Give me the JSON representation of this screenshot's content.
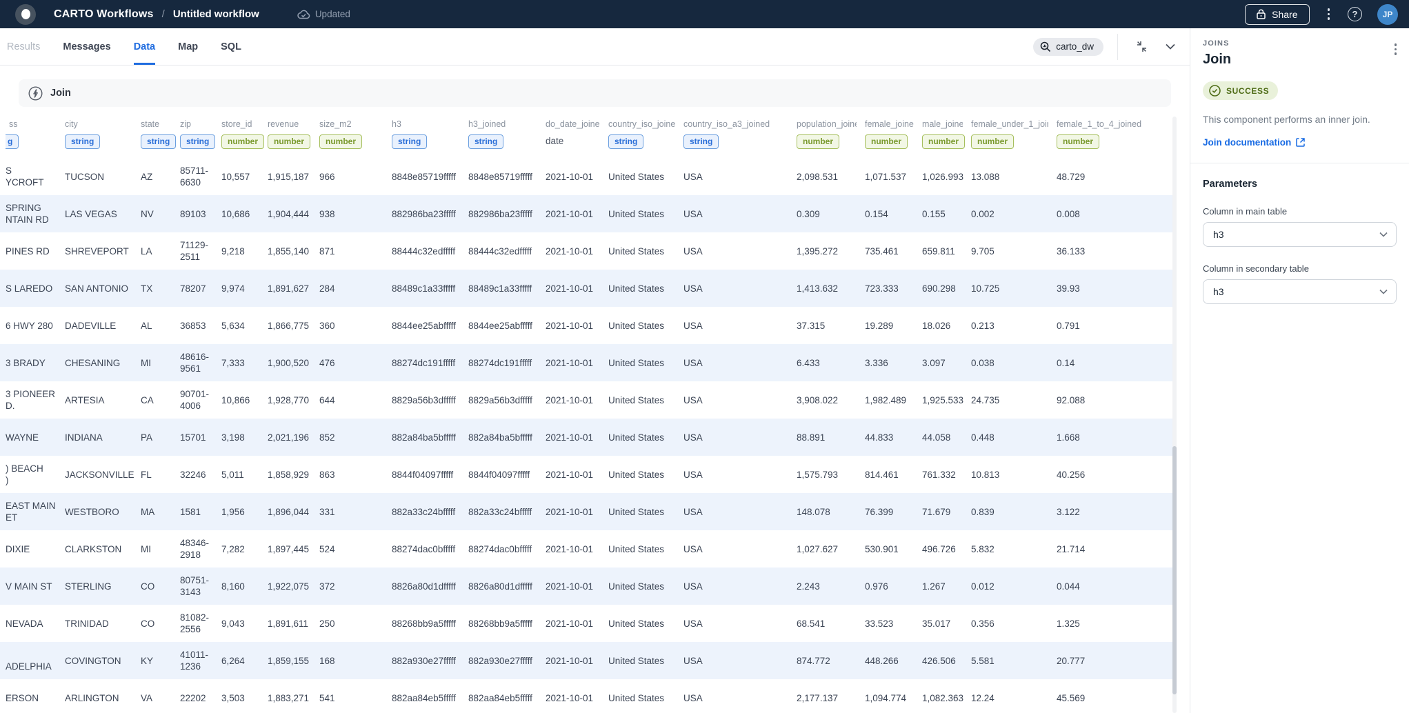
{
  "colors": {
    "accent_blue": "#1f6ce0",
    "header_navy": "#16283e",
    "string_badge": "#2b6fd8",
    "number_badge": "#7a9a2e",
    "success_green": "#4e6c16",
    "row_alt": "#edf3fc"
  },
  "header": {
    "brand": "CARTO Workflows",
    "separator": "/",
    "workflow_title": "Untitled workflow",
    "status": "Updated",
    "share_label": "Share",
    "avatar_initials": "JP"
  },
  "toolbar": {
    "tabs": [
      {
        "label": "Results",
        "state": "disabled"
      },
      {
        "label": "Messages",
        "state": "normal"
      },
      {
        "label": "Data",
        "state": "active"
      },
      {
        "label": "Map",
        "state": "normal"
      },
      {
        "label": "SQL",
        "state": "normal"
      }
    ],
    "connection": "carto_dw"
  },
  "canvas": {
    "section_title": "Join"
  },
  "panel": {
    "category": "JOINS",
    "title": "Join",
    "status": "SUCCESS",
    "description": "This component performs an inner join.",
    "doc_link": "Join documentation",
    "parameters_title": "Parameters",
    "main_column_label": "Column in main table",
    "main_column_value": "h3",
    "secondary_column_label": "Column in secondary table",
    "secondary_column_value": "h3"
  },
  "table": {
    "columns": [
      {
        "key": "address",
        "label": "ss",
        "type": "string-clipped",
        "type_label": "g"
      },
      {
        "key": "city",
        "label": "city",
        "type": "string",
        "type_label": "string"
      },
      {
        "key": "state",
        "label": "state",
        "type": "string",
        "type_label": "string"
      },
      {
        "key": "zip",
        "label": "zip",
        "type": "string",
        "type_label": "string"
      },
      {
        "key": "store_id",
        "label": "store_id",
        "type": "number",
        "type_label": "number"
      },
      {
        "key": "revenue",
        "label": "revenue",
        "type": "number",
        "type_label": "number"
      },
      {
        "key": "size_m2",
        "label": "size_m2",
        "type": "number",
        "type_label": "number"
      },
      {
        "key": "h3",
        "label": "h3",
        "type": "string",
        "type_label": "string"
      },
      {
        "key": "h3_joined",
        "label": "h3_joined",
        "type": "string",
        "type_label": "string"
      },
      {
        "key": "do_date_joined",
        "label": "do_date_joined",
        "type": "date",
        "type_label": "date"
      },
      {
        "key": "country_iso_joined",
        "label": "country_iso_joined",
        "type": "string",
        "type_label": "string"
      },
      {
        "key": "country_iso_a3_joined",
        "label": "country_iso_a3_joined",
        "type": "string",
        "type_label": "string"
      },
      {
        "key": "population_joined",
        "label": "population_joined",
        "type": "number",
        "type_label": "number"
      },
      {
        "key": "female_joined",
        "label": "female_joined",
        "type": "number",
        "type_label": "number"
      },
      {
        "key": "male_joined",
        "label": "male_joined",
        "type": "number",
        "type_label": "number"
      },
      {
        "key": "female_under_1_joined",
        "label": "female_under_1_joined",
        "type": "number",
        "type_label": "number"
      },
      {
        "key": "female_1_to_4_joined",
        "label": "female_1_to_4_joined",
        "type": "number",
        "type_label": "number"
      }
    ],
    "rows": [
      [
        "S\nYCROFT",
        "TUCSON",
        "AZ",
        "85711-\n6630",
        "10,557",
        "1,915,187",
        "966",
        "8848e85719fffff",
        "8848e85719fffff",
        "2021-10-01",
        "United States",
        "USA",
        "2,098.531",
        "1,071.537",
        "1,026.993",
        "13.088",
        "48.729"
      ],
      [
        "SPRING\nNTAIN RD",
        "LAS VEGAS",
        "NV",
        "89103",
        "10,686",
        "1,904,444",
        "938",
        "882986ba23fffff",
        "882986ba23fffff",
        "2021-10-01",
        "United States",
        "USA",
        "0.309",
        "0.154",
        "0.155",
        "0.002",
        "0.008"
      ],
      [
        "PINES RD",
        "SHREVEPORT",
        "LA",
        "71129-\n2511",
        "9,218",
        "1,855,140",
        "871",
        "88444c32edfffff",
        "88444c32edfffff",
        "2021-10-01",
        "United States",
        "USA",
        "1,395.272",
        "735.461",
        "659.811",
        "9.705",
        "36.133"
      ],
      [
        "S LAREDO",
        "SAN ANTONIO",
        "TX",
        "78207",
        "9,974",
        "1,891,627",
        "284",
        "88489c1a33fffff",
        "88489c1a33fffff",
        "2021-10-01",
        "United States",
        "USA",
        "1,413.632",
        "723.333",
        "690.298",
        "10.725",
        "39.93"
      ],
      [
        "6 HWY 280",
        "DADEVILLE",
        "AL",
        "36853",
        "5,634",
        "1,866,775",
        "360",
        "8844ee25abfffff",
        "8844ee25abfffff",
        "2021-10-01",
        "United States",
        "USA",
        "37.315",
        "19.289",
        "18.026",
        "0.213",
        "0.791"
      ],
      [
        "3 BRADY",
        "CHESANING",
        "MI",
        "48616-\n9561",
        "7,333",
        "1,900,520",
        "476",
        "88274dc191fffff",
        "88274dc191fffff",
        "2021-10-01",
        "United States",
        "USA",
        "6.433",
        "3.336",
        "3.097",
        "0.038",
        "0.14"
      ],
      [
        "3 PIONEER\nD.",
        "ARTESIA",
        "CA",
        "90701-\n4006",
        "10,866",
        "1,928,770",
        "644",
        "8829a56b3dfffff",
        "8829a56b3dfffff",
        "2021-10-01",
        "United States",
        "USA",
        "3,908.022",
        "1,982.489",
        "1,925.533",
        "24.735",
        "92.088"
      ],
      [
        "WAYNE",
        "INDIANA",
        "PA",
        "15701",
        "3,198",
        "2,021,196",
        "852",
        "882a84ba5bfffff",
        "882a84ba5bfffff",
        "2021-10-01",
        "United States",
        "USA",
        "88.891",
        "44.833",
        "44.058",
        "0.448",
        "1.668"
      ],
      [
        ") BEACH\n)",
        "JACKSONVILLE",
        "FL",
        "32246",
        "5,011",
        "1,858,929",
        "863",
        "8844f04097fffff",
        "8844f04097fffff",
        "2021-10-01",
        "United States",
        "USA",
        "1,575.793",
        "814.461",
        "761.332",
        "10.813",
        "40.256"
      ],
      [
        "EAST MAIN\nET",
        "WESTBORO",
        "MA",
        "1581",
        "1,956",
        "1,896,044",
        "331",
        "882a33c24bfffff",
        "882a33c24bfffff",
        "2021-10-01",
        "United States",
        "USA",
        "148.078",
        "76.399",
        "71.679",
        "0.839",
        "3.122"
      ],
      [
        "DIXIE",
        "CLARKSTON",
        "MI",
        "48346-\n2918",
        "7,282",
        "1,897,445",
        "524",
        "88274dac0bfffff",
        "88274dac0bfffff",
        "2021-10-01",
        "United States",
        "USA",
        "1,027.627",
        "530.901",
        "496.726",
        "5.832",
        "21.714"
      ],
      [
        "V MAIN ST",
        "STERLING",
        "CO",
        "80751-\n3143",
        "8,160",
        "1,922,075",
        "372",
        "8826a80d1dfffff",
        "8826a80d1dfffff",
        "2021-10-01",
        "United States",
        "USA",
        "2.243",
        "0.976",
        "1.267",
        "0.012",
        "0.044"
      ],
      [
        "NEVADA",
        "TRINIDAD",
        "CO",
        "81082-\n2556",
        "9,043",
        "1,891,611",
        "250",
        "88268bb9a5fffff",
        "88268bb9a5fffff",
        "2021-10-01",
        "United States",
        "USA",
        "68.541",
        "33.523",
        "35.017",
        "0.356",
        "1.325"
      ],
      [
        "\nADELPHIA",
        "COVINGTON",
        "KY",
        "41011-\n1236",
        "6,264",
        "1,859,155",
        "168",
        "882a930e27fffff",
        "882a930e27fffff",
        "2021-10-01",
        "United States",
        "USA",
        "874.772",
        "448.266",
        "426.506",
        "5.581",
        "20.777"
      ],
      [
        "ERSON",
        "ARLINGTON",
        "VA",
        "22202",
        "3,503",
        "1,883,271",
        "541",
        "882aa84eb5fffff",
        "882aa84eb5fffff",
        "2021-10-01",
        "United States",
        "USA",
        "2,177.137",
        "1,094.774",
        "1,082.363",
        "12.24",
        "45.569"
      ]
    ]
  }
}
